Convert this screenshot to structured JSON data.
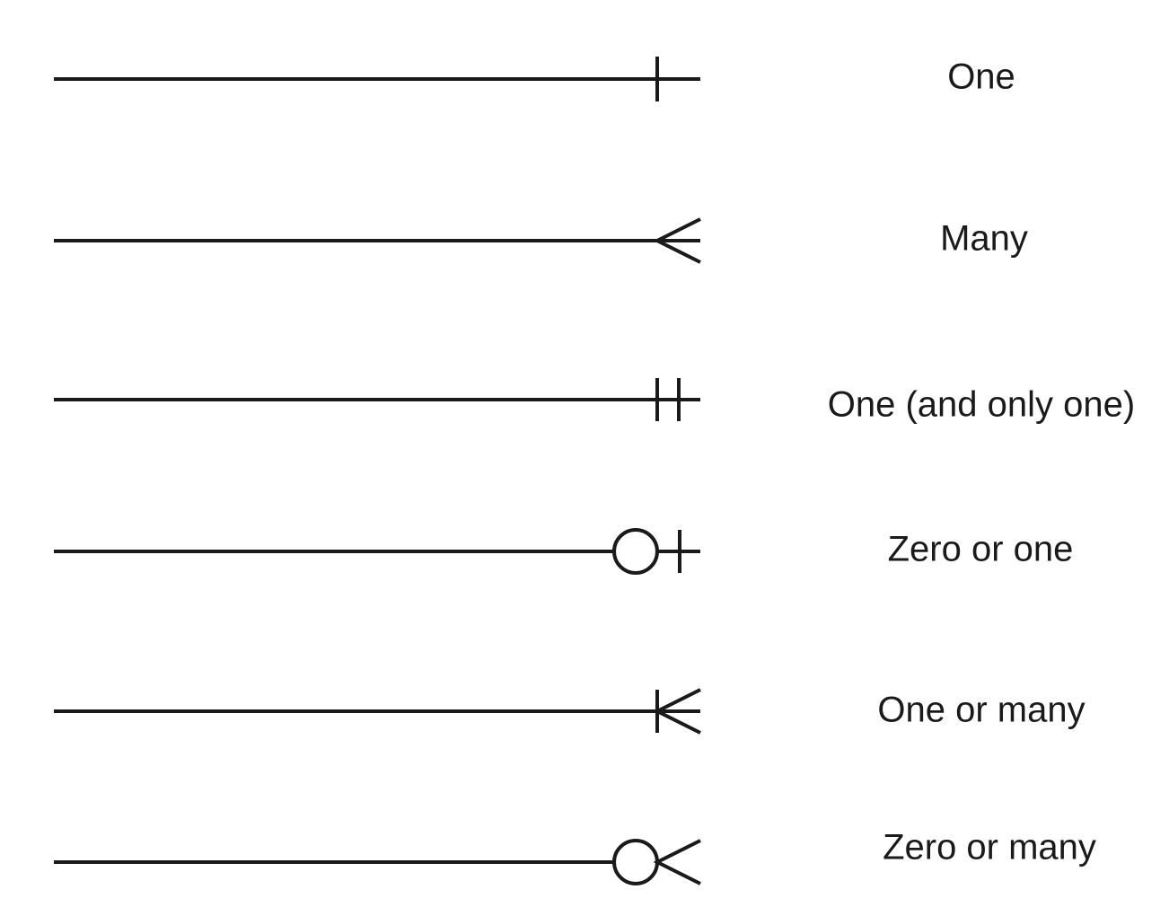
{
  "notations": [
    {
      "id": "one",
      "label": "One",
      "symbol": "single-bar"
    },
    {
      "id": "many",
      "label": "Many",
      "symbol": "crow-foot"
    },
    {
      "id": "one-and-only-one",
      "label": "One (and only one)",
      "symbol": "double-bar"
    },
    {
      "id": "zero-or-one",
      "label": "Zero or one",
      "symbol": "circle-bar"
    },
    {
      "id": "one-or-many",
      "label": "One or many",
      "symbol": "bar-crow-foot"
    },
    {
      "id": "zero-or-many",
      "label": "Zero or many",
      "symbol": "circle-crow-foot"
    }
  ],
  "colors": {
    "stroke": "#1a1a1a",
    "background": "#ffffff"
  }
}
